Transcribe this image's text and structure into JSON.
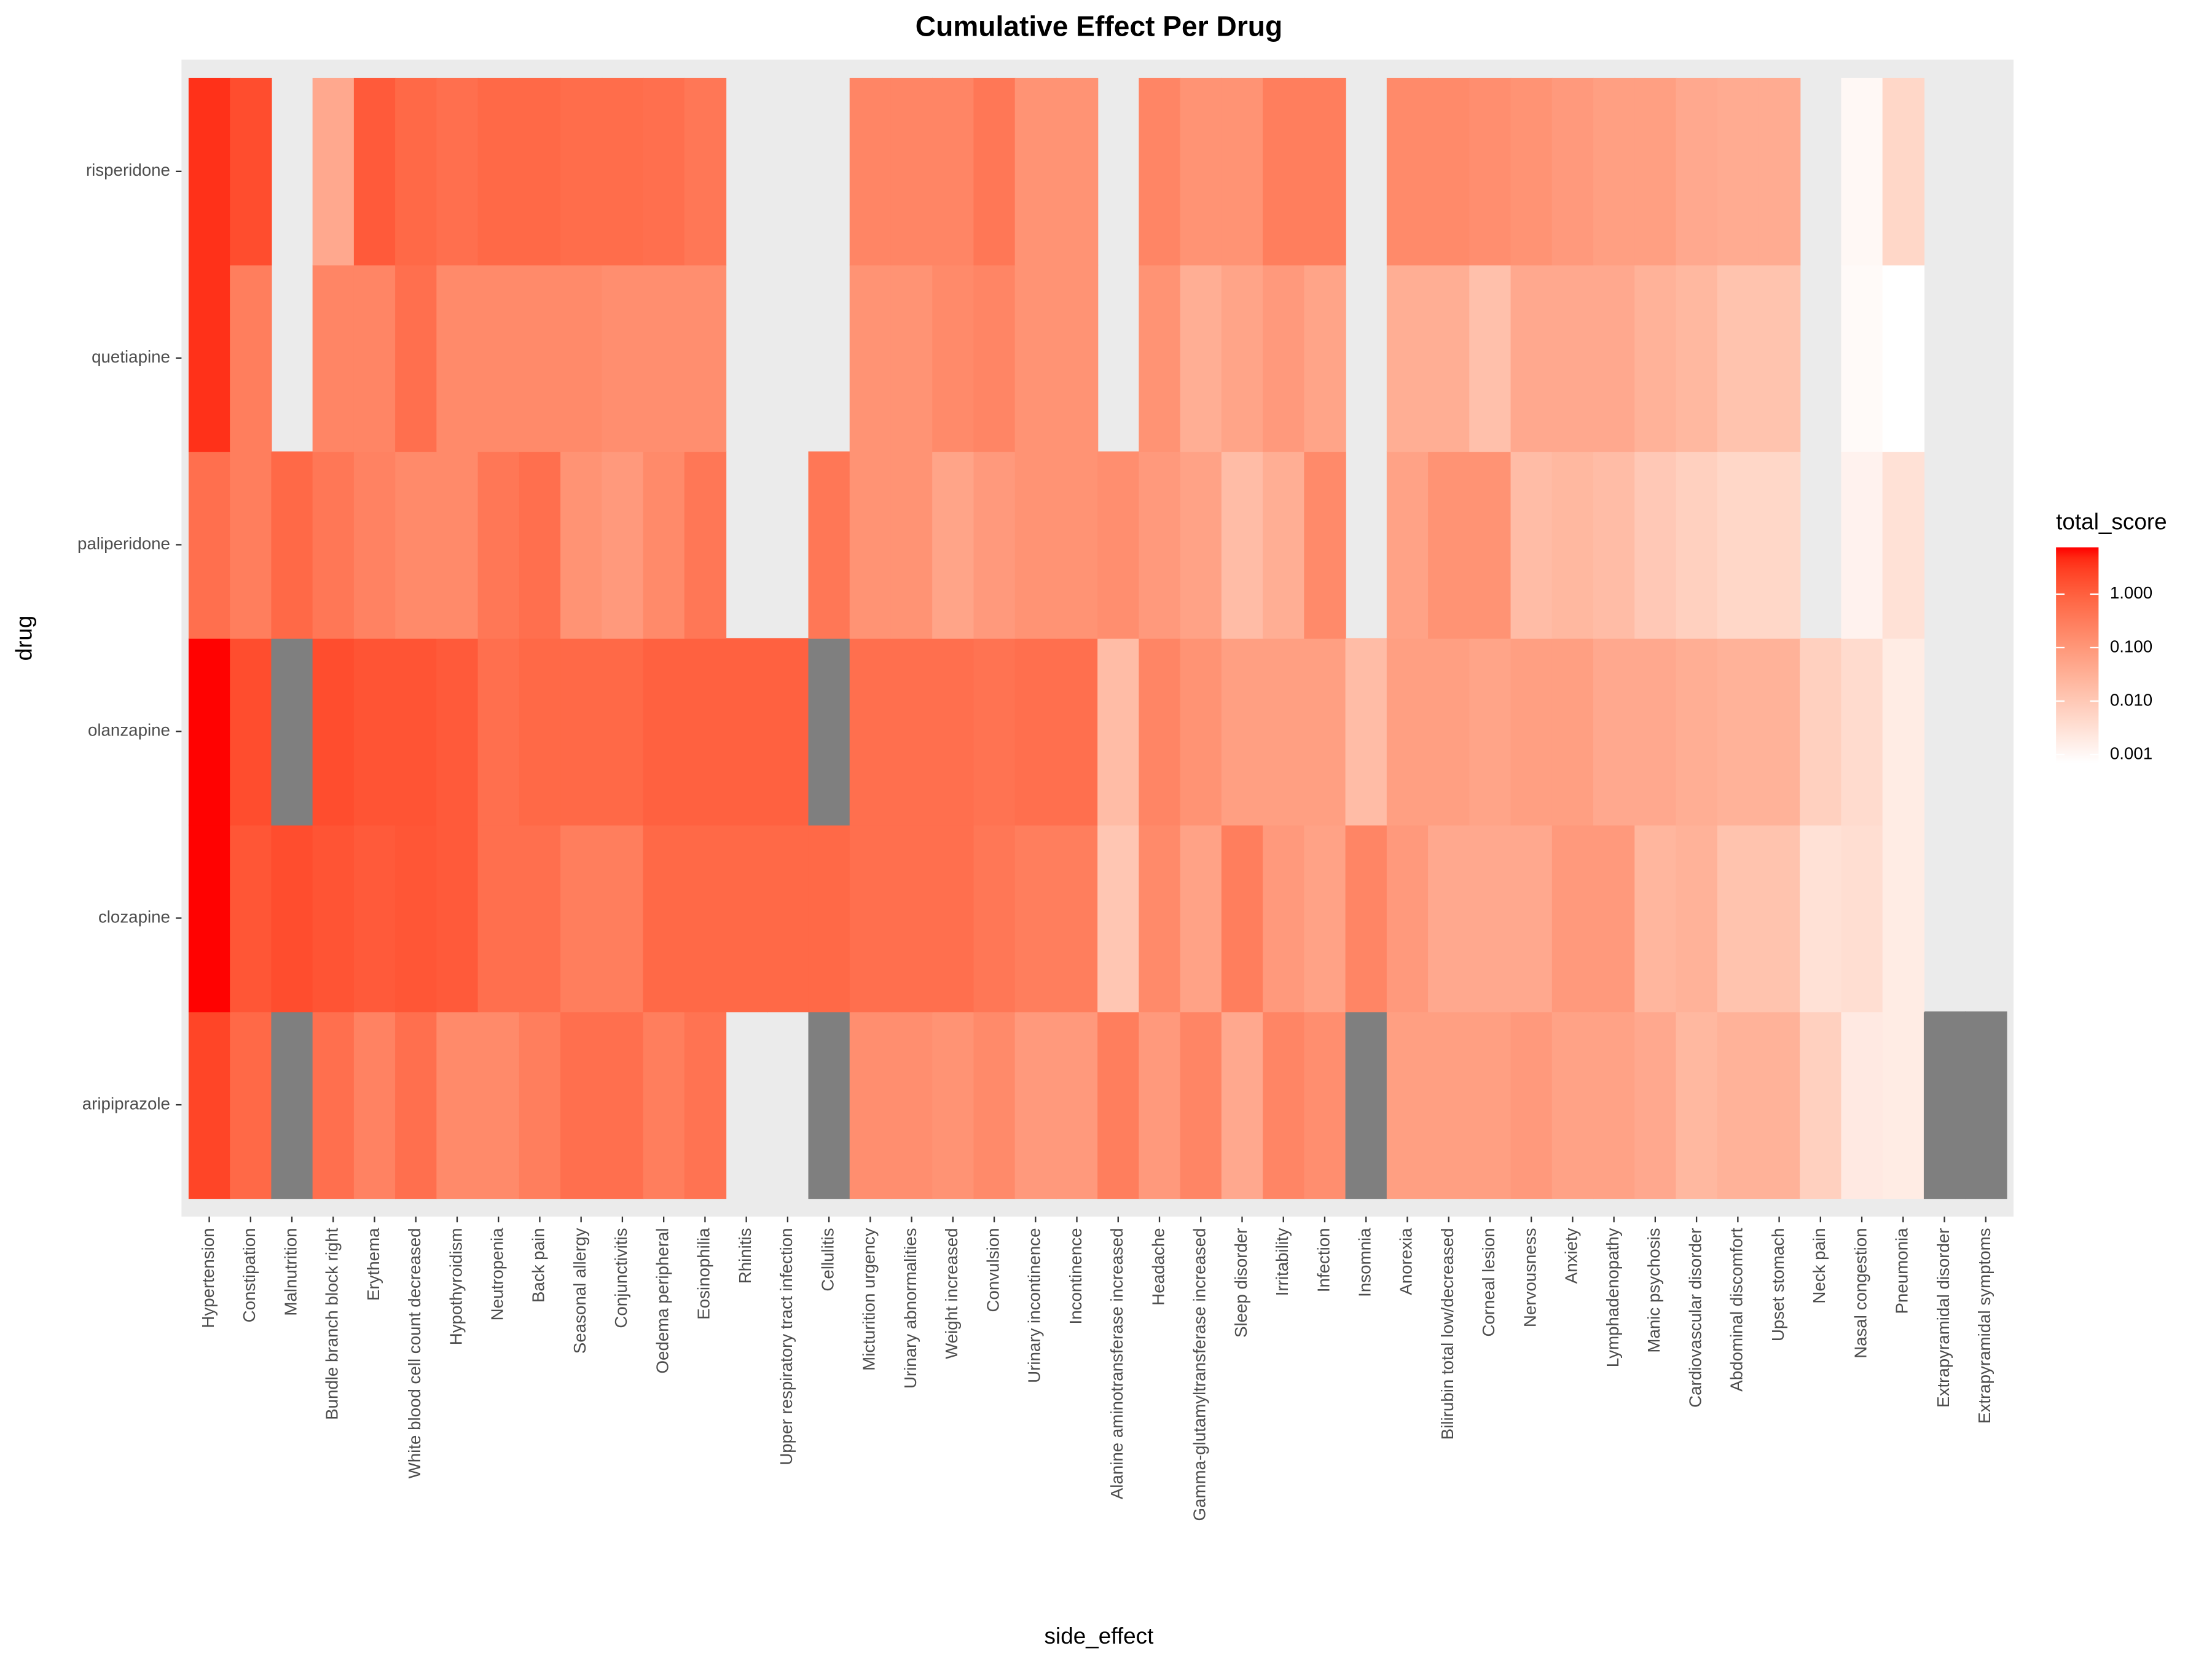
{
  "chart_data": {
    "type": "heatmap",
    "title": "Cumulative Effect Per Drug",
    "x_label": "side_effect",
    "y_label": "drug",
    "categories": [
      "Hypertension",
      "Constipation",
      "Malnutrition",
      "Bundle branch block right",
      "Erythema",
      "White blood cell count decreased",
      "Hypothyroidism",
      "Neutropenia",
      "Back pain",
      "Seasonal allergy",
      "Conjunctivitis",
      "Oedema peripheral",
      "Eosinophilia",
      "Rhinitis",
      "Upper respiratory tract infection",
      "Cellulitis",
      "Micturition urgency",
      "Urinary abnormalities",
      "Weight increased",
      "Convulsion",
      "Urinary incontinence",
      "Incontinence",
      "Alanine aminotransferase increased",
      "Headache",
      "Gamma-glutamyltransferase increased",
      "Sleep disorder",
      "Irritability",
      "Infection",
      "Insomnia",
      "Anorexia",
      "Bilirubin total low/decreased",
      "Corneal lesion",
      "Nervousness",
      "Anxiety",
      "Lymphadenopathy",
      "Manic psychosis",
      "Cardiovascular disorder",
      "Abdominal discomfort",
      "Upset stomach",
      "Neck pain",
      "Nasal congestion",
      "Pneumonia",
      "Extrapyramidal disorder",
      "Extrapyramidal symptoms"
    ],
    "y_categories": [
      "aripiprazole",
      "clozapine",
      "olanzapine",
      "paliperidone",
      "quetiapine",
      "risperidone"
    ],
    "z": [
      [
        2.4,
        0.7,
        "NA",
        0.55,
        0.25,
        0.55,
        0.18,
        0.18,
        0.3,
        0.55,
        0.55,
        0.3,
        0.46,
        null,
        null,
        "NA",
        0.15,
        0.15,
        0.12,
        0.18,
        0.09,
        0.09,
        0.3,
        0.09,
        0.22,
        0.045,
        0.22,
        0.15,
        "NA",
        0.07,
        0.07,
        0.07,
        0.09,
        0.06,
        0.06,
        0.045,
        0.022,
        0.029,
        0.029,
        0.007,
        0.002,
        0.0018,
        "NA",
        "NA"
      ],
      [
        7.4,
        1.4,
        1.9,
        1.5,
        1.2,
        1.4,
        1.2,
        0.55,
        0.55,
        0.3,
        0.3,
        0.7,
        0.7,
        0.7,
        0.7,
        0.7,
        0.55,
        0.55,
        0.55,
        0.4,
        0.3,
        0.3,
        0.011,
        0.18,
        0.06,
        0.3,
        0.09,
        0.06,
        0.22,
        0.09,
        0.045,
        0.045,
        0.045,
        0.09,
        0.09,
        0.024,
        0.029,
        0.013,
        0.013,
        0.003,
        0.0035,
        0.0018,
        null,
        null
      ],
      [
        7.4,
        1.9,
        "NA",
        1.9,
        1.5,
        1.5,
        1.2,
        0.55,
        0.7,
        0.7,
        0.7,
        0.95,
        0.95,
        0.95,
        0.95,
        "NA",
        0.55,
        0.55,
        0.55,
        0.46,
        0.55,
        0.55,
        0.018,
        0.22,
        0.12,
        0.07,
        0.07,
        0.07,
        0.018,
        0.07,
        0.07,
        0.055,
        0.07,
        0.07,
        0.045,
        0.045,
        0.035,
        0.029,
        0.029,
        0.007,
        0.004,
        0.0018,
        null,
        null
      ],
      [
        0.55,
        0.3,
        0.7,
        0.4,
        0.25,
        0.18,
        0.18,
        0.4,
        0.55,
        0.12,
        0.09,
        0.18,
        0.4,
        null,
        null,
        0.4,
        0.12,
        0.12,
        0.055,
        0.09,
        0.12,
        0.12,
        0.15,
        0.09,
        0.06,
        0.018,
        0.035,
        0.18,
        null,
        0.06,
        0.12,
        0.12,
        0.018,
        0.022,
        0.018,
        0.01,
        0.007,
        0.005,
        0.005,
        null,
        0.0013,
        0.003,
        null,
        null
      ],
      [
        4,
        0.3,
        null,
        0.22,
        0.22,
        0.55,
        0.18,
        0.18,
        0.18,
        0.18,
        0.15,
        0.15,
        0.15,
        null,
        null,
        null,
        0.12,
        0.12,
        0.18,
        0.22,
        0.12,
        0.12,
        null,
        0.12,
        0.035,
        0.055,
        0.09,
        0.055,
        null,
        0.035,
        0.035,
        0.015,
        0.045,
        0.045,
        0.045,
        0.029,
        0.022,
        0.013,
        0.013,
        null,
        0.0009,
        0.0007,
        null,
        null
      ],
      [
        4,
        1.9,
        null,
        0.045,
        1.2,
        0.7,
        0.55,
        0.7,
        0.7,
        0.6,
        0.6,
        0.55,
        0.4,
        null,
        null,
        null,
        0.22,
        0.22,
        0.22,
        0.4,
        0.12,
        0.12,
        null,
        0.22,
        0.12,
        0.12,
        0.3,
        0.3,
        null,
        0.18,
        0.18,
        0.15,
        0.12,
        0.09,
        0.07,
        0.07,
        0.045,
        0.04,
        0.04,
        null,
        0.001,
        0.005,
        null,
        null
      ]
    ],
    "colorlim": [
      0.0007,
      7.5
    ],
    "log_scale": true,
    "color_low": "#ffffff",
    "color_high": "#ff0000",
    "na_color": "#7f7f7f",
    "legend_title": "total_score",
    "legend_ticks": [
      0.001,
      {
        "value": 0.01,
        "label": "0.010"
      },
      {
        "value": 0.1,
        "label": "0.100"
      },
      {
        "value": 1,
        "label": "1.000"
      }
    ]
  }
}
